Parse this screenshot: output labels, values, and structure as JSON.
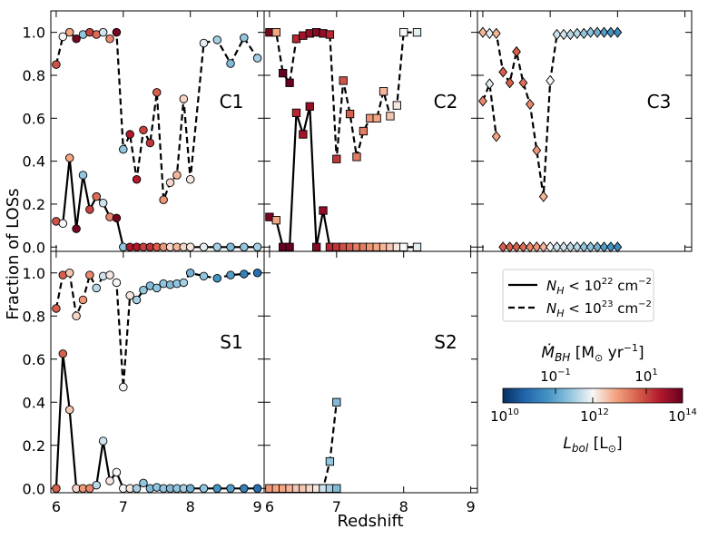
{
  "figure": {
    "ylabel": "Fraction of LOSs",
    "xlabel": "Redshift",
    "legend": {
      "solid_label": "N_H < 10^22 cm^-2",
      "dashed_label": "N_H < 10^23 cm^-2"
    },
    "colorbar": {
      "top_label": "Ṁ_BH [M⊙ yr⁻¹]",
      "bottom_label": "L_bol [L⊙]",
      "top_ticks": [
        "10^-1",
        "10^1"
      ],
      "bottom_ticks": [
        "10^10",
        "10^12",
        "10^14"
      ],
      "colormap": "RdBu_r",
      "range_log_Lbol": [
        10,
        14
      ]
    }
  },
  "chart_data": [
    {
      "panel": "C1",
      "type": "scatter",
      "marker": "circle",
      "xlim": [
        5.92,
        9.1
      ],
      "ylim": [
        -0.02,
        1.1
      ],
      "series": [
        {
          "linestyle": "dashed",
          "x": [
            6.0,
            6.1,
            6.2,
            6.3,
            6.4,
            6.5,
            6.6,
            6.7,
            6.8,
            6.9,
            7.0,
            7.1,
            7.2,
            7.3,
            7.4,
            7.5,
            7.6,
            7.7,
            7.8,
            7.9,
            8.0,
            8.2,
            8.4,
            8.6,
            8.8,
            9.0
          ],
          "y": [
            0.85,
            0.98,
            1.0,
            0.97,
            0.99,
            1.0,
            0.99,
            1.0,
            0.97,
            1.0,
            0.455,
            0.525,
            0.315,
            0.545,
            0.485,
            0.72,
            0.22,
            0.3,
            0.335,
            0.69,
            0.315,
            0.95,
            0.965,
            0.855,
            0.975,
            0.88
          ],
          "logLbol": [
            13.1,
            12.0,
            12.5,
            13.9,
            11.5,
            13.2,
            12.9,
            11.8,
            12.7,
            13.9,
            11.5,
            13.5,
            13.5,
            13.2,
            13.3,
            13.0,
            12.6,
            12.2,
            12.4,
            12.2,
            12.1,
            11.9,
            11.6,
            11.4,
            11.5,
            11.6
          ]
        },
        {
          "linestyle": "solid",
          "x": [
            6.0,
            6.1,
            6.2,
            6.3,
            6.4,
            6.5,
            6.6,
            6.7,
            6.8,
            6.9,
            7.0,
            7.1,
            7.2,
            7.3,
            7.4,
            7.5,
            7.6,
            7.7,
            7.8,
            7.9,
            8.0,
            8.2,
            8.4,
            8.6,
            8.8,
            9.0
          ],
          "y": [
            0.12,
            0.11,
            0.415,
            0.085,
            0.335,
            0.175,
            0.235,
            0.205,
            0.14,
            0.135,
            0.0,
            0.0,
            0.0,
            0.0,
            0.0,
            0.0,
            0.0,
            0.0,
            0.0,
            0.0,
            0.0,
            0.0,
            0.0,
            0.0,
            0.0,
            0.0
          ],
          "logLbol": [
            13.1,
            12.0,
            12.5,
            13.9,
            11.5,
            13.2,
            12.9,
            11.8,
            12.7,
            13.9,
            11.5,
            13.5,
            13.5,
            13.2,
            13.3,
            13.0,
            12.6,
            12.2,
            12.4,
            12.2,
            12.1,
            11.9,
            11.6,
            11.4,
            11.5,
            11.6
          ]
        }
      ]
    },
    {
      "panel": "C2",
      "type": "scatter",
      "marker": "square",
      "xlim": [
        5.92,
        9.1
      ],
      "ylim": [
        -0.02,
        1.1
      ],
      "series": [
        {
          "linestyle": "dashed",
          "x": [
            6.0,
            6.1,
            6.2,
            6.3,
            6.4,
            6.5,
            6.6,
            6.7,
            6.8,
            6.9,
            7.0,
            7.1,
            7.2,
            7.3,
            7.4,
            7.5,
            7.6,
            7.7,
            7.8,
            7.9,
            8.0,
            8.2
          ],
          "y": [
            1.0,
            1.0,
            0.81,
            0.765,
            0.97,
            0.985,
            0.995,
            1.0,
            0.995,
            0.99,
            0.41,
            0.775,
            0.62,
            0.42,
            0.54,
            0.6,
            0.6,
            0.725,
            0.61,
            0.66,
            1.0,
            1.0
          ],
          "logLbol": [
            13.9,
            12.5,
            14.0,
            14.0,
            13.4,
            13.6,
            13.7,
            13.8,
            13.7,
            13.4,
            13.3,
            13.1,
            13.0,
            12.8,
            12.8,
            12.6,
            12.5,
            12.4,
            12.3,
            12.1,
            12.0,
            11.9
          ]
        },
        {
          "linestyle": "solid",
          "x": [
            6.0,
            6.1,
            6.2,
            6.3,
            6.4,
            6.5,
            6.6,
            6.7,
            6.8,
            6.9,
            7.0,
            7.1,
            7.2,
            7.3,
            7.4,
            7.5,
            7.6,
            7.7,
            7.8,
            7.9,
            8.0,
            8.2
          ],
          "y": [
            0.14,
            0.125,
            0.0,
            0.0,
            0.625,
            0.525,
            0.655,
            0.0,
            0.17,
            0.0,
            0.0,
            0.0,
            0.0,
            0.0,
            0.0,
            0.0,
            0.0,
            0.0,
            0.0,
            0.0,
            0.0,
            0.0
          ],
          "logLbol": [
            13.9,
            12.5,
            14.0,
            14.0,
            13.4,
            13.6,
            13.7,
            13.8,
            13.7,
            13.4,
            13.3,
            13.1,
            13.0,
            12.8,
            12.8,
            12.6,
            12.5,
            12.4,
            12.3,
            12.1,
            12.0,
            11.9
          ]
        }
      ]
    },
    {
      "panel": "C3",
      "type": "scatter",
      "marker": "diamond",
      "xlim": [
        5.92,
        9.1
      ],
      "ylim": [
        -0.02,
        1.1
      ],
      "series": [
        {
          "linestyle": "dashed",
          "x": [
            6.0,
            6.1,
            6.2,
            6.3,
            6.4,
            6.5,
            6.6,
            6.7,
            6.8,
            6.9,
            7.0,
            7.1,
            7.2,
            7.3,
            7.4,
            7.5,
            7.6,
            7.7,
            7.8,
            7.9,
            8.0
          ],
          "y": [
            1.0,
            0.995,
            0.995,
            0.815,
            0.765,
            0.91,
            0.765,
            0.665,
            0.45,
            0.235,
            0.775,
            0.99,
            0.99,
            0.99,
            0.995,
            0.995,
            1.0,
            1.0,
            1.0,
            1.0,
            1.0
          ],
          "logLbol": [
            12.4,
            11.9,
            12.4,
            13.0,
            13.0,
            13.0,
            12.9,
            12.7,
            12.6,
            12.4,
            12.0,
            11.8,
            11.8,
            11.7,
            11.7,
            11.5,
            11.5,
            11.3,
            11.1,
            11.0,
            10.9
          ]
        },
        {
          "linestyle": "dashed",
          "x": [
            6.0,
            6.1,
            6.2
          ],
          "y": [
            0.68,
            0.76,
            0.515
          ],
          "logLbol": [
            12.7,
            11.9,
            12.5
          ]
        },
        {
          "linestyle": "solid",
          "x": [
            6.3,
            6.4,
            6.5,
            6.6,
            6.7,
            6.8,
            6.9,
            7.0,
            7.1,
            7.2,
            7.3,
            7.4,
            7.5,
            7.6,
            7.7,
            7.8,
            7.9,
            8.0
          ],
          "y": [
            0.0,
            0.0,
            0.0,
            0.0,
            0.0,
            0.0,
            0.0,
            0.0,
            0.0,
            0.0,
            0.0,
            0.0,
            0.0,
            0.0,
            0.0,
            0.0,
            0.0,
            0.0
          ],
          "logLbol": [
            13.0,
            13.0,
            13.0,
            12.9,
            12.7,
            12.6,
            12.4,
            12.0,
            11.8,
            11.8,
            11.7,
            11.7,
            11.5,
            11.5,
            11.3,
            11.1,
            11.0,
            10.9
          ]
        }
      ]
    },
    {
      "panel": "S1",
      "type": "scatter",
      "marker": "circle",
      "xlim": [
        5.92,
        9.1
      ],
      "ylim": [
        -0.02,
        1.1
      ],
      "series": [
        {
          "linestyle": "dashed",
          "x": [
            6.0,
            6.1,
            6.2,
            6.3,
            6.4,
            6.5,
            6.6,
            6.7,
            6.8,
            6.9,
            7.0,
            7.1,
            7.2,
            7.3,
            7.4,
            7.5,
            7.6,
            7.7,
            7.8,
            7.9,
            8.0,
            8.2,
            8.4,
            8.6,
            8.8,
            9.0
          ],
          "y": [
            0.835,
            0.99,
            1.0,
            0.8,
            0.875,
            0.99,
            0.93,
            0.985,
            0.99,
            0.955,
            0.47,
            0.895,
            0.875,
            0.92,
            0.94,
            0.93,
            0.95,
            0.945,
            0.95,
            0.955,
            1.0,
            0.985,
            0.975,
            0.99,
            0.995,
            1.0
          ],
          "logLbol": [
            13.0,
            13.0,
            12.3,
            12.2,
            12.6,
            12.7,
            11.7,
            11.8,
            12.1,
            12.0,
            12.0,
            12.1,
            11.6,
            11.5,
            11.4,
            11.5,
            11.5,
            11.4,
            11.5,
            11.6,
            11.3,
            11.5,
            11.0,
            11.1,
            10.8,
            10.6
          ]
        },
        {
          "linestyle": "solid",
          "x": [
            6.0,
            6.1,
            6.2,
            6.3,
            6.4,
            6.5,
            6.6,
            6.7,
            6.8,
            6.9,
            7.0,
            7.1,
            7.2,
            7.3,
            7.4,
            7.5,
            7.6,
            7.7,
            7.8,
            7.9,
            8.0,
            8.2,
            8.4,
            8.6,
            8.8,
            9.0
          ],
          "y": [
            0.0,
            0.625,
            0.365,
            0.0,
            0.0,
            0.0,
            0.015,
            0.22,
            0.035,
            0.075,
            0.0,
            0.0,
            0.0,
            0.025,
            0.0,
            0.005,
            0.0,
            0.0,
            0.0,
            0.0,
            0.0,
            0.0,
            0.0,
            0.0,
            0.0,
            0.0
          ],
          "logLbol": [
            13.0,
            13.0,
            12.3,
            12.2,
            12.6,
            12.7,
            11.7,
            11.8,
            12.1,
            12.0,
            12.0,
            12.1,
            11.6,
            11.5,
            11.4,
            11.5,
            11.5,
            11.4,
            11.5,
            11.6,
            11.3,
            11.5,
            11.0,
            11.1,
            10.8,
            10.6
          ]
        }
      ]
    },
    {
      "panel": "S2",
      "type": "scatter",
      "marker": "square",
      "xlim": [
        5.92,
        9.1
      ],
      "ylim": [
        -0.02,
        1.1
      ],
      "series": [
        {
          "linestyle": "dashed",
          "x": [
            6.0,
            6.1,
            6.2,
            6.3,
            6.4,
            6.5,
            6.6,
            6.7,
            6.8,
            6.9,
            7.0
          ],
          "y": [
            0.0,
            0.0,
            0.0,
            0.0,
            0.0,
            0.0,
            0.0,
            0.0,
            0.0,
            0.125,
            0.4
          ],
          "logLbol": [
            12.6,
            12.5,
            12.5,
            12.4,
            12.3,
            12.3,
            12.2,
            12.1,
            11.8,
            11.5,
            11.4
          ]
        },
        {
          "linestyle": "solid",
          "x": [
            6.8,
            6.9,
            7.0
          ],
          "y": [
            0.0,
            0.0,
            0.0
          ],
          "logLbol": [
            11.8,
            11.6,
            11.4
          ]
        }
      ]
    }
  ]
}
